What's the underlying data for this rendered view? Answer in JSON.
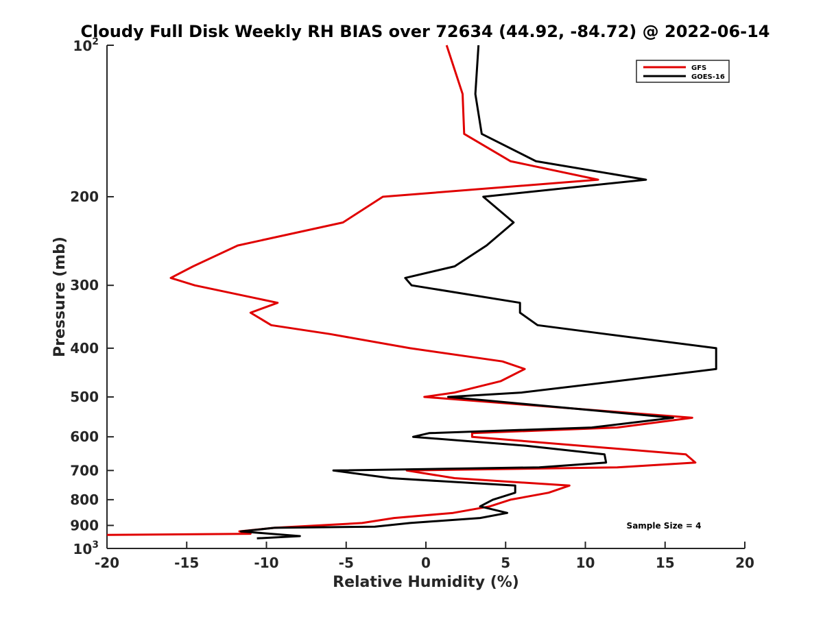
{
  "chart_data": {
    "type": "line",
    "title": "Cloudy Full Disk Weekly RH BIAS over 72634 (44.92, -84.72) @ 2022-06-14",
    "xlabel": "Relative Humidity (%)",
    "ylabel": "Pressure (mb)",
    "xlim": [
      -20,
      20
    ],
    "ylim": [
      100,
      1000
    ],
    "y_scale": "log",
    "y_reversed": true,
    "x_ticks": [
      -20,
      -15,
      -10,
      -5,
      0,
      5,
      10,
      15,
      20
    ],
    "x_tick_labels": [
      "-20",
      "-15",
      "-10",
      "-5",
      "0",
      "5",
      "10",
      "15",
      "20"
    ],
    "y_ticks": [
      200,
      300,
      400,
      500,
      600,
      700,
      800,
      900
    ],
    "y_tick_labels": [
      "200",
      "300",
      "400",
      "500",
      "600",
      "700",
      "800",
      "900"
    ],
    "y_end_labels": [
      {
        "value": 100,
        "base": "10",
        "exp": "2"
      },
      {
        "value": 1000,
        "base": "10",
        "exp": "3"
      }
    ],
    "grid": false,
    "legend_position": "top-right",
    "annotation": "Sample Size = 4",
    "series": [
      {
        "name": "GFS",
        "color": "#e00000",
        "points": [
          [
            1.3,
            100
          ],
          [
            2.3,
            125
          ],
          [
            2.4,
            150
          ],
          [
            5.3,
            170
          ],
          [
            10.8,
            185
          ],
          [
            -2.7,
            200
          ],
          [
            -5.2,
            225
          ],
          [
            -11.8,
            250
          ],
          [
            -14.6,
            275
          ],
          [
            -16.0,
            290
          ],
          [
            -14.5,
            300
          ],
          [
            -9.3,
            325
          ],
          [
            -11.0,
            340
          ],
          [
            -9.7,
            360
          ],
          [
            -6.0,
            375
          ],
          [
            -1.0,
            400
          ],
          [
            4.8,
            425
          ],
          [
            6.2,
            440
          ],
          [
            4.7,
            465
          ],
          [
            1.8,
            490
          ],
          [
            -0.1,
            500
          ],
          [
            16.7,
            550
          ],
          [
            12.0,
            575
          ],
          [
            2.9,
            590
          ],
          [
            2.9,
            600
          ],
          [
            16.3,
            650
          ],
          [
            16.9,
            675
          ],
          [
            12.0,
            690
          ],
          [
            -1.2,
            700
          ],
          [
            1.8,
            725
          ],
          [
            9.0,
            750
          ],
          [
            7.7,
            775
          ],
          [
            5.3,
            800
          ],
          [
            4.0,
            825
          ],
          [
            1.7,
            850
          ],
          [
            -2.0,
            870
          ],
          [
            -4.0,
            890
          ],
          [
            -9.5,
            910
          ],
          [
            -11.7,
            925
          ],
          [
            -11.0,
            935
          ],
          [
            -20.0,
            940
          ]
        ]
      },
      {
        "name": "GOES-16",
        "color": "#000000",
        "points": [
          [
            3.3,
            100
          ],
          [
            3.1,
            125
          ],
          [
            3.5,
            150
          ],
          [
            6.9,
            170
          ],
          [
            13.8,
            185
          ],
          [
            3.6,
            200
          ],
          [
            5.5,
            225
          ],
          [
            3.8,
            250
          ],
          [
            1.8,
            275
          ],
          [
            -1.3,
            290
          ],
          [
            -0.9,
            300
          ],
          [
            5.9,
            325
          ],
          [
            5.9,
            340
          ],
          [
            7.0,
            360
          ],
          [
            11.3,
            375
          ],
          [
            18.2,
            400
          ],
          [
            18.2,
            440
          ],
          [
            12.0,
            465
          ],
          [
            6.0,
            490
          ],
          [
            1.4,
            500
          ],
          [
            15.5,
            550
          ],
          [
            10.4,
            575
          ],
          [
            0.2,
            590
          ],
          [
            -0.8,
            600
          ],
          [
            6.3,
            625
          ],
          [
            11.2,
            650
          ],
          [
            11.3,
            675
          ],
          [
            7.1,
            690
          ],
          [
            -5.8,
            700
          ],
          [
            -2.2,
            725
          ],
          [
            5.6,
            750
          ],
          [
            5.6,
            775
          ],
          [
            4.2,
            800
          ],
          [
            3.4,
            825
          ],
          [
            5.1,
            850
          ],
          [
            3.4,
            870
          ],
          [
            -1.0,
            890
          ],
          [
            -3.2,
            905
          ],
          [
            -9.5,
            910
          ],
          [
            -11.6,
            925
          ],
          [
            -7.9,
            945
          ],
          [
            -10.6,
            955
          ]
        ]
      }
    ]
  }
}
